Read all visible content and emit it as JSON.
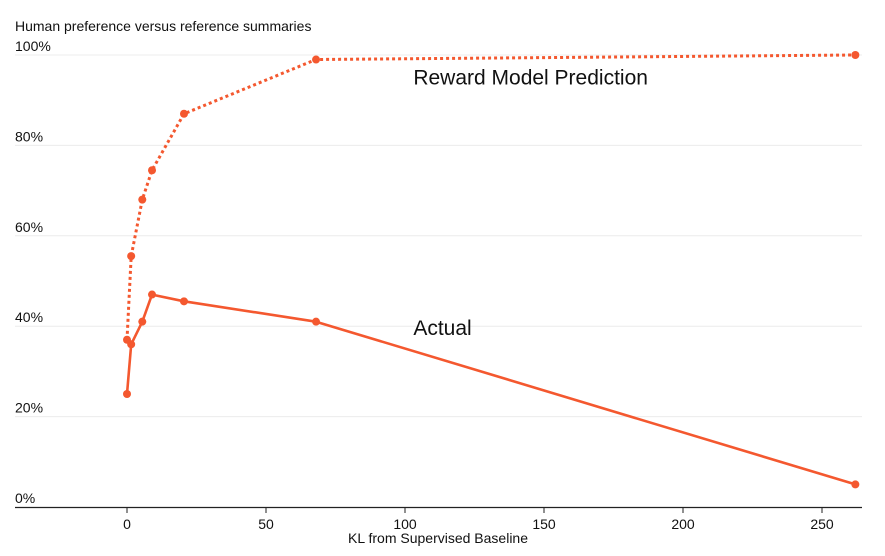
{
  "chart_data": {
    "type": "line",
    "title": "Human preference versus reference summaries",
    "xlabel": "KL from Supervised Baseline",
    "ylabel": "",
    "xlim": [
      -40,
      263
    ],
    "ylim": [
      0,
      100
    ],
    "x_ticks": [
      0,
      50,
      100,
      150,
      200,
      250
    ],
    "x_tick_labels": [
      "0",
      "50",
      "100",
      "150",
      "200",
      "250"
    ],
    "y_ticks": [
      0,
      20,
      40,
      60,
      80,
      100
    ],
    "y_tick_labels": [
      "0%",
      "20%",
      "40%",
      "60%",
      "80%",
      "100%"
    ],
    "grid": true,
    "colors": {
      "series": "#f4582f",
      "grid": "#ececec",
      "axis": "#222222"
    },
    "series": [
      {
        "name": "Reward Model Prediction",
        "style": "dotted",
        "x": [
          0,
          1.5,
          5.5,
          9,
          20.5,
          68,
          262
        ],
        "y": [
          37,
          55.5,
          68,
          74.5,
          87,
          99,
          100
        ]
      },
      {
        "name": "Actual",
        "style": "solid",
        "x": [
          0,
          1.5,
          5.5,
          9,
          20.5,
          68,
          262
        ],
        "y": [
          25,
          36,
          41,
          47,
          45.5,
          41,
          5
        ]
      }
    ],
    "annotations": [
      {
        "text": "Reward Model Prediction",
        "x": 103,
        "y": 93.5
      },
      {
        "text": "Actual",
        "x": 103,
        "y": 38
      }
    ]
  }
}
